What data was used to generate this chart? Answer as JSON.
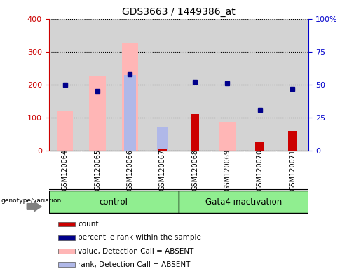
{
  "title": "GDS3663 / 1449386_at",
  "samples": [
    "GSM120064",
    "GSM120065",
    "GSM120066",
    "GSM120067",
    "GSM120068",
    "GSM120069",
    "GSM120070",
    "GSM120071"
  ],
  "group_control_count": 4,
  "group_labels": [
    "control",
    "Gata4 inactivation"
  ],
  "group_color": "#90ee90",
  "count_values": [
    null,
    null,
    null,
    5,
    110,
    null,
    25,
    60
  ],
  "percentile_rank_values": [
    50,
    45,
    58,
    null,
    52,
    51,
    31,
    47
  ],
  "value_absent_values": [
    120,
    225,
    325,
    null,
    null,
    88,
    null,
    null
  ],
  "rank_absent_values": [
    null,
    null,
    230,
    70,
    null,
    null,
    null,
    null
  ],
  "left_ylim": [
    0,
    400
  ],
  "right_ylim": [
    0,
    100
  ],
  "left_yticks": [
    0,
    100,
    200,
    300,
    400
  ],
  "right_yticks": [
    0,
    25,
    50,
    75,
    100
  ],
  "right_yticklabels": [
    "0",
    "25",
    "50",
    "75",
    "100%"
  ],
  "left_color": "#cc0000",
  "right_color": "#0000cc",
  "count_color": "#cc0000",
  "percentile_color": "#00008b",
  "value_absent_color": "#ffb6b6",
  "rank_absent_color": "#b0b8e8",
  "background_color": "#d3d3d3",
  "legend_items": [
    {
      "label": "count",
      "color": "#cc0000"
    },
    {
      "label": "percentile rank within the sample",
      "color": "#00008b"
    },
    {
      "label": "value, Detection Call = ABSENT",
      "color": "#ffb6b6"
    },
    {
      "label": "rank, Detection Call = ABSENT",
      "color": "#b0b8e8"
    }
  ]
}
